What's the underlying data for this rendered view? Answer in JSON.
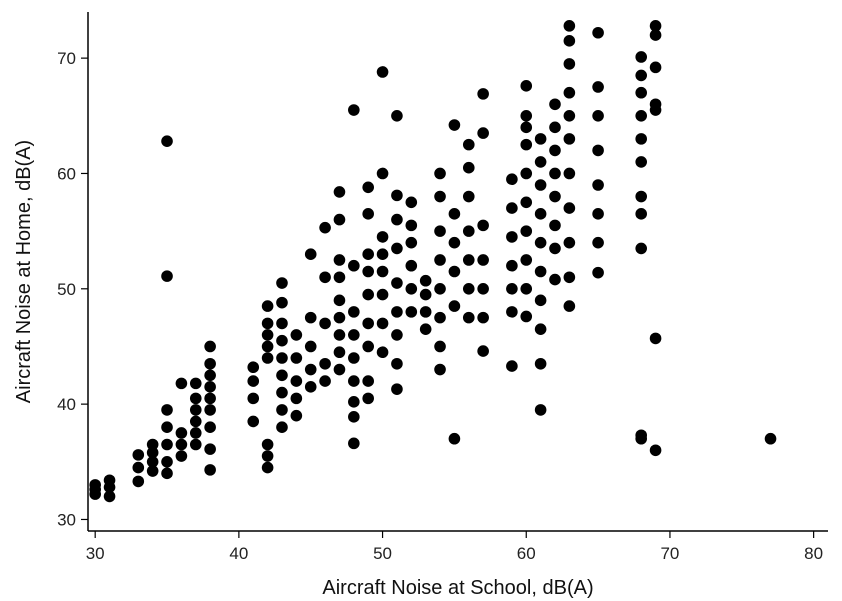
{
  "chart_data": {
    "type": "scatter",
    "xlabel": "Aircraft Noise at School, dB(A)",
    "ylabel": "Aircraft Noise at Home, dB(A)",
    "xlim": [
      29.5,
      81
    ],
    "ylim": [
      29,
      74
    ],
    "xticks": [
      30,
      40,
      50,
      60,
      70,
      80
    ],
    "yticks": [
      30,
      40,
      50,
      60,
      70
    ],
    "grid": false,
    "legend": "none",
    "marker_color": "#000000",
    "series": [
      {
        "x": [
          30,
          30,
          30,
          31,
          31,
          31,
          33,
          33,
          33,
          34,
          34,
          34,
          34,
          35,
          35,
          35,
          35,
          35,
          35,
          35,
          36,
          36,
          36,
          36,
          37,
          37,
          37,
          37,
          37,
          37,
          38,
          38,
          38,
          38,
          38,
          38,
          38,
          38,
          38,
          41,
          41,
          41,
          41,
          42,
          42,
          42,
          42,
          42,
          42,
          42,
          42,
          43,
          43,
          43,
          43,
          43,
          43,
          43,
          43,
          43,
          44,
          44,
          44,
          44,
          44,
          45,
          45,
          45,
          45,
          45,
          46,
          46,
          46,
          46,
          46,
          47,
          47,
          47,
          47,
          47,
          47,
          47,
          47,
          47,
          48,
          48,
          48,
          48,
          48,
          48,
          48,
          48,
          48,
          49,
          49,
          49,
          49,
          49,
          49,
          49,
          49,
          49,
          50,
          50,
          50,
          50,
          50,
          50,
          50,
          50,
          51,
          51,
          51,
          51,
          51,
          51,
          51,
          51,
          51,
          52,
          52,
          52,
          52,
          52,
          52,
          53,
          53,
          53,
          53,
          54,
          54,
          54,
          54,
          54,
          54,
          54,
          54,
          55,
          55,
          55,
          55,
          55,
          55,
          56,
          56,
          56,
          56,
          56,
          56,
          56,
          57,
          57,
          57,
          57,
          57,
          57,
          57,
          59,
          59,
          59,
          59,
          59,
          59,
          59,
          60,
          60,
          60,
          60,
          60,
          60,
          60,
          60,
          60,
          60,
          61,
          61,
          61,
          61,
          61,
          61,
          61,
          61,
          61,
          61,
          62,
          62,
          62,
          62,
          62,
          62,
          62,
          62,
          63,
          63,
          63,
          63,
          63,
          63,
          63,
          63,
          63,
          63,
          63,
          65,
          65,
          65,
          65,
          65,
          65,
          65,
          65,
          68,
          68,
          68,
          68,
          68,
          68,
          68,
          68,
          68,
          68,
          68,
          69,
          69,
          69,
          69,
          69,
          69,
          69,
          77
        ],
        "y": [
          32.2,
          32.6,
          33.0,
          32.0,
          32.8,
          33.4,
          33.3,
          34.5,
          35.6,
          34.2,
          35.0,
          35.8,
          36.5,
          34.0,
          35.0,
          36.5,
          38.0,
          39.5,
          51.1,
          62.8,
          35.5,
          36.5,
          37.5,
          41.8,
          36.5,
          37.5,
          38.5,
          39.5,
          40.5,
          41.8,
          34.3,
          36.1,
          38.0,
          39.5,
          40.5,
          41.5,
          42.5,
          43.5,
          45.0,
          38.5,
          40.5,
          42.0,
          43.2,
          34.5,
          35.5,
          36.5,
          44.0,
          45.0,
          46.0,
          47.0,
          48.5,
          38.0,
          39.5,
          41.0,
          42.5,
          44.0,
          45.5,
          47.0,
          48.8,
          50.5,
          39.0,
          40.5,
          42.0,
          44.0,
          46.0,
          41.5,
          43.0,
          45.0,
          47.5,
          53.0,
          42.0,
          43.5,
          47.0,
          51.0,
          55.3,
          43.0,
          44.5,
          46.0,
          47.5,
          49.0,
          51.0,
          52.5,
          56.0,
          58.4,
          36.6,
          38.9,
          40.2,
          42.0,
          44.0,
          46.0,
          48.0,
          52.0,
          65.5,
          40.5,
          42.0,
          45.0,
          47.0,
          49.5,
          51.5,
          53.0,
          56.5,
          58.8,
          44.5,
          47.0,
          49.5,
          51.5,
          53.0,
          54.5,
          60.0,
          68.8,
          41.3,
          43.5,
          46.0,
          48.0,
          50.5,
          53.5,
          56.0,
          58.1,
          65.0,
          48.0,
          50.0,
          52.0,
          54.0,
          55.5,
          57.5,
          46.5,
          48.0,
          49.5,
          50.7,
          43.0,
          45.0,
          47.5,
          50.0,
          52.5,
          55.0,
          58.0,
          60.0,
          37.0,
          48.5,
          51.5,
          54.0,
          56.5,
          64.2,
          47.5,
          50.0,
          52.5,
          55.0,
          58.0,
          60.5,
          62.5,
          44.6,
          47.5,
          50.0,
          52.5,
          55.5,
          63.5,
          66.9,
          43.3,
          48.0,
          50.0,
          52.0,
          54.5,
          57.0,
          59.5,
          47.6,
          50.0,
          52.5,
          55.0,
          57.5,
          60.0,
          62.5,
          64.0,
          65.0,
          67.6,
          39.5,
          43.5,
          46.5,
          49.0,
          51.5,
          54.0,
          56.5,
          59.0,
          61.0,
          63.0,
          50.8,
          53.5,
          55.5,
          58.0,
          60.0,
          62.0,
          64.0,
          66.0,
          48.5,
          51.0,
          54.0,
          57.0,
          60.0,
          63.0,
          65.0,
          67.0,
          69.5,
          71.5,
          72.8,
          51.4,
          54.0,
          56.5,
          59.0,
          62.0,
          65.0,
          67.5,
          72.2,
          37.0,
          37.3,
          53.5,
          56.5,
          58.0,
          61.0,
          63.0,
          65.0,
          67.0,
          68.5,
          70.1,
          36.0,
          45.7,
          65.5,
          66.0,
          69.2,
          72.0,
          72.8,
          37.0
        ]
      }
    ]
  }
}
